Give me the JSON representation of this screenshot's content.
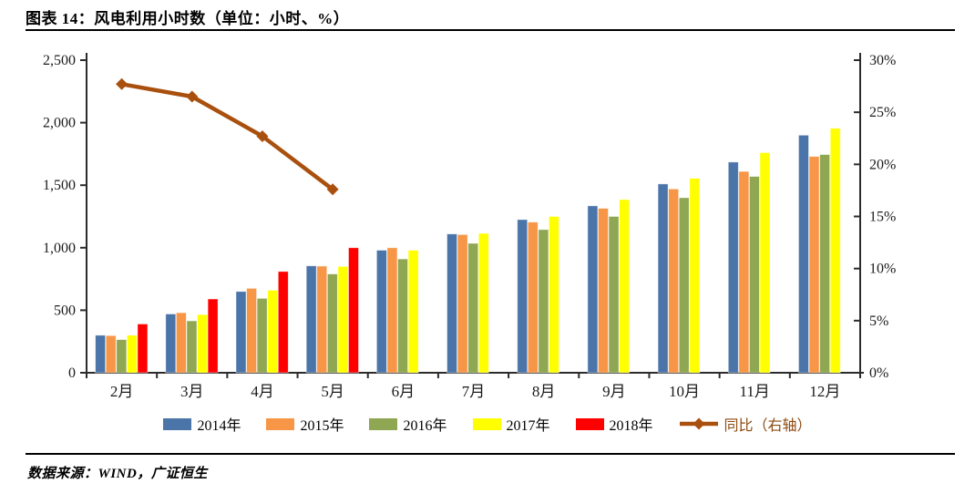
{
  "header": {
    "title": "图表 14：风电利用小时数（单位：小时、%）"
  },
  "footer": {
    "source": "数据来源：WIND，广证恒生"
  },
  "colors": {
    "axis": "#2b2b2b",
    "text": "#1a1a1a",
    "line_series": "#A9500F",
    "line_legend_text": "#8F4A10"
  },
  "chart_data": {
    "type": "bar",
    "subtype": "grouped-bars-with-line-on-secondary-axis",
    "title": "风电利用小时数",
    "unit_note": "单位：小时、%",
    "categories": [
      "2月",
      "3月",
      "4月",
      "5月",
      "6月",
      "7月",
      "8月",
      "9月",
      "10月",
      "11月",
      "12月"
    ],
    "left_axis": {
      "min": 0,
      "max": 2500,
      "ticks": [
        "0",
        "500",
        "1,000",
        "1,500",
        "2,000",
        "2,500"
      ]
    },
    "right_axis": {
      "min": 0,
      "max": 30,
      "ticks": [
        "0%",
        "5%",
        "10%",
        "15%",
        "20%",
        "25%",
        "30%"
      ]
    },
    "legend_position": "bottom",
    "grid": false,
    "series": [
      {
        "name": "2014年",
        "kind": "bar",
        "color": "#4B74A9",
        "values": [
          300,
          470,
          650,
          855,
          980,
          1110,
          1225,
          1335,
          1510,
          1685,
          1900
        ]
      },
      {
        "name": "2015年",
        "kind": "bar",
        "color": "#F79646",
        "values": [
          297,
          480,
          675,
          853,
          1000,
          1105,
          1205,
          1315,
          1470,
          1610,
          1730
        ]
      },
      {
        "name": "2016年",
        "kind": "bar",
        "color": "#8FA652",
        "values": [
          265,
          415,
          595,
          790,
          910,
          1035,
          1145,
          1250,
          1400,
          1570,
          1745
        ]
      },
      {
        "name": "2017年",
        "kind": "bar",
        "color": "#FFFF00",
        "values": [
          300,
          465,
          660,
          850,
          980,
          1115,
          1250,
          1385,
          1555,
          1760,
          1955
        ]
      },
      {
        "name": "2018年",
        "kind": "bar",
        "color": "#FF0000",
        "values": [
          390,
          590,
          810,
          1000,
          null,
          null,
          null,
          null,
          null,
          null,
          null
        ]
      },
      {
        "name": "同比（右轴）",
        "kind": "line",
        "axis": "right",
        "color": "#A9500F",
        "values": [
          27.7,
          26.5,
          22.7,
          17.6,
          null,
          null,
          null,
          null,
          null,
          null,
          null
        ]
      }
    ]
  }
}
